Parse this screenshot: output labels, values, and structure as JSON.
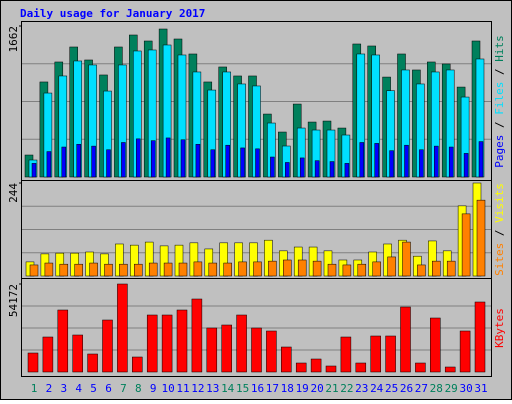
{
  "chart_data": [
    {
      "type": "bar",
      "title": "Daily usage for January 2017",
      "title_color": "#0000ff",
      "ylim": [
        0,
        1662
      ],
      "yticks": [
        1662
      ],
      "series": [
        {
          "name": "Hits",
          "color": "#00805c",
          "values": [
            242,
            1046,
            1266,
            1431,
            1288,
            1123,
            1431,
            1563,
            1497,
            1629,
            1519,
            1354,
            1046,
            1211,
            1112,
            1112,
            693,
            495,
            803,
            605,
            616,
            539,
            1464,
            1442,
            1100,
            1354,
            1178,
            1266,
            1244,
            990,
            1497
          ]
        },
        {
          "name": "Files",
          "color": "#00e0ff",
          "values": [
            187,
            924,
            1112,
            1277,
            1233,
            946,
            1233,
            1387,
            1398,
            1453,
            1343,
            1156,
            957,
            1156,
            1024,
            1002,
            594,
            341,
            539,
            517,
            517,
            462,
            1354,
            1343,
            950,
            1178,
            1024,
            1156,
            1178,
            880,
            1299
          ]
        },
        {
          "name": "Pages",
          "color": "#0000ff",
          "values": [
            150,
            280,
            330,
            360,
            340,
            300,
            380,
            420,
            400,
            430,
            410,
            360,
            300,
            350,
            320,
            310,
            220,
            160,
            210,
            180,
            170,
            150,
            380,
            370,
            290,
            350,
            300,
            340,
            330,
            260,
            390
          ]
        }
      ]
    },
    {
      "type": "bar",
      "ylim": [
        0,
        244
      ],
      "yticks": [
        244
      ],
      "series": [
        {
          "name": "Visits",
          "color": "#ffff00",
          "values": [
            37,
            58,
            60,
            60,
            63,
            58,
            84,
            81,
            89,
            79,
            81,
            87,
            71,
            87,
            87,
            87,
            94,
            66,
            76,
            76,
            66,
            42,
            42,
            63,
            84,
            94,
            52,
            92,
            66,
            184,
            244
          ]
        },
        {
          "name": "Sites",
          "color": "#ff8000",
          "values": [
            29,
            34,
            31,
            31,
            34,
            31,
            31,
            31,
            34,
            34,
            34,
            37,
            34,
            34,
            37,
            37,
            39,
            42,
            42,
            39,
            31,
            29,
            31,
            37,
            50,
            89,
            29,
            39,
            39,
            163,
            199
          ]
        }
      ]
    },
    {
      "type": "bar",
      "ylim": [
        0,
        54172
      ],
      "yticks": [
        54172
      ],
      "categories": [
        "1",
        "2",
        "3",
        "4",
        "5",
        "6",
        "7",
        "8",
        "9",
        "10",
        "11",
        "12",
        "13",
        "14",
        "15",
        "16",
        "17",
        "18",
        "19",
        "20",
        "21",
        "22",
        "23",
        "24",
        "25",
        "26",
        "27",
        "28",
        "29",
        "30",
        "31"
      ],
      "label_colors": [
        "#00805c",
        "#0000ff",
        "#0000ff",
        "#0000ff",
        "#0000ff",
        "#0000ff",
        "#00805c",
        "#00805c",
        "#0000ff",
        "#0000ff",
        "#0000ff",
        "#0000ff",
        "#0000ff",
        "#00805c",
        "#00805c",
        "#0000ff",
        "#0000ff",
        "#0000ff",
        "#0000ff",
        "#0000ff",
        "#00805c",
        "#00805c",
        "#0000ff",
        "#0000ff",
        "#0000ff",
        "#0000ff",
        "#0000ff",
        "#00805c",
        "#00805c",
        "#0000ff",
        "#0000ff"
      ],
      "series": [
        {
          "name": "KBytes",
          "color": "#ff0000",
          "values": [
            11696,
            21546,
            38166,
            22777,
            11080,
            32011,
            54172,
            9233,
            35089,
            35089,
            38166,
            44938,
            27086,
            28933,
            35089,
            27086,
            25240,
            15390,
            5540,
            8003,
            3694,
            21546,
            5540,
            22162,
            22162,
            40013,
            5540,
            33243,
            3078,
            25240,
            43092
          ]
        }
      ]
    }
  ]
}
